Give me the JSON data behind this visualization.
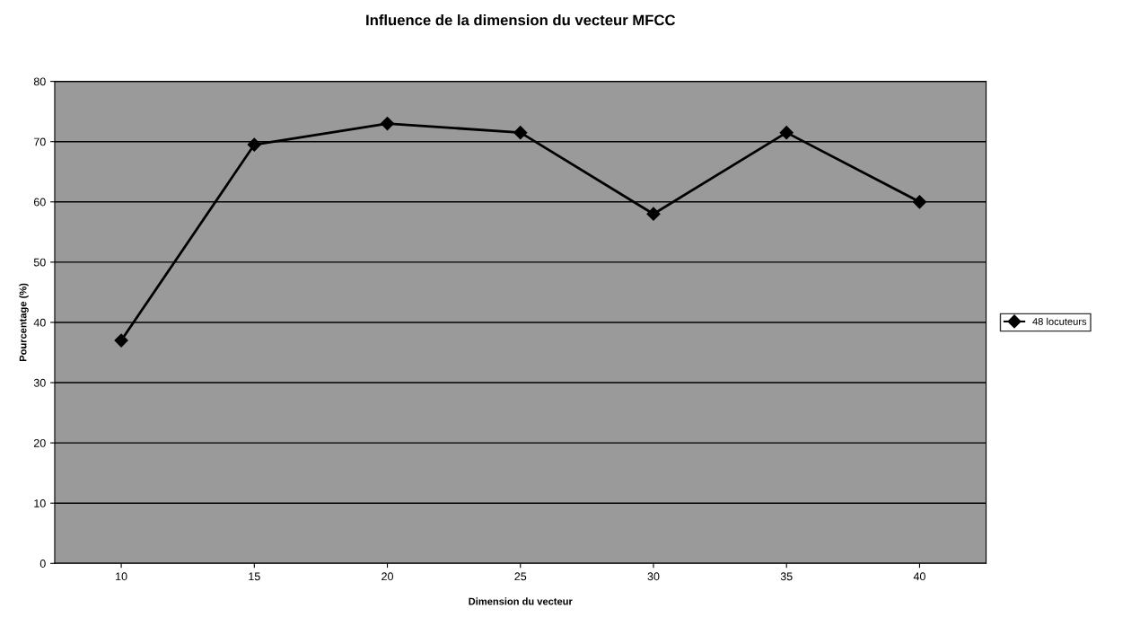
{
  "chart_data": {
    "type": "line",
    "title": "Influence de la dimension du vecteur MFCC",
    "xlabel": "Dimension du vecteur",
    "ylabel": "Pourcentage (%)",
    "categories": [
      "10",
      "15",
      "20",
      "25",
      "30",
      "35",
      "40"
    ],
    "series": [
      {
        "name": "48 locuteurs",
        "color": "#000000",
        "values": [
          37,
          69.5,
          73,
          71.5,
          58,
          71.5,
          60
        ]
      }
    ],
    "ylim": [
      0,
      80
    ],
    "yticks": [
      0,
      10,
      20,
      30,
      40,
      50,
      60,
      70,
      80
    ],
    "grid": "y",
    "legend": "right",
    "marker": "diamond",
    "line_style": "solid"
  }
}
